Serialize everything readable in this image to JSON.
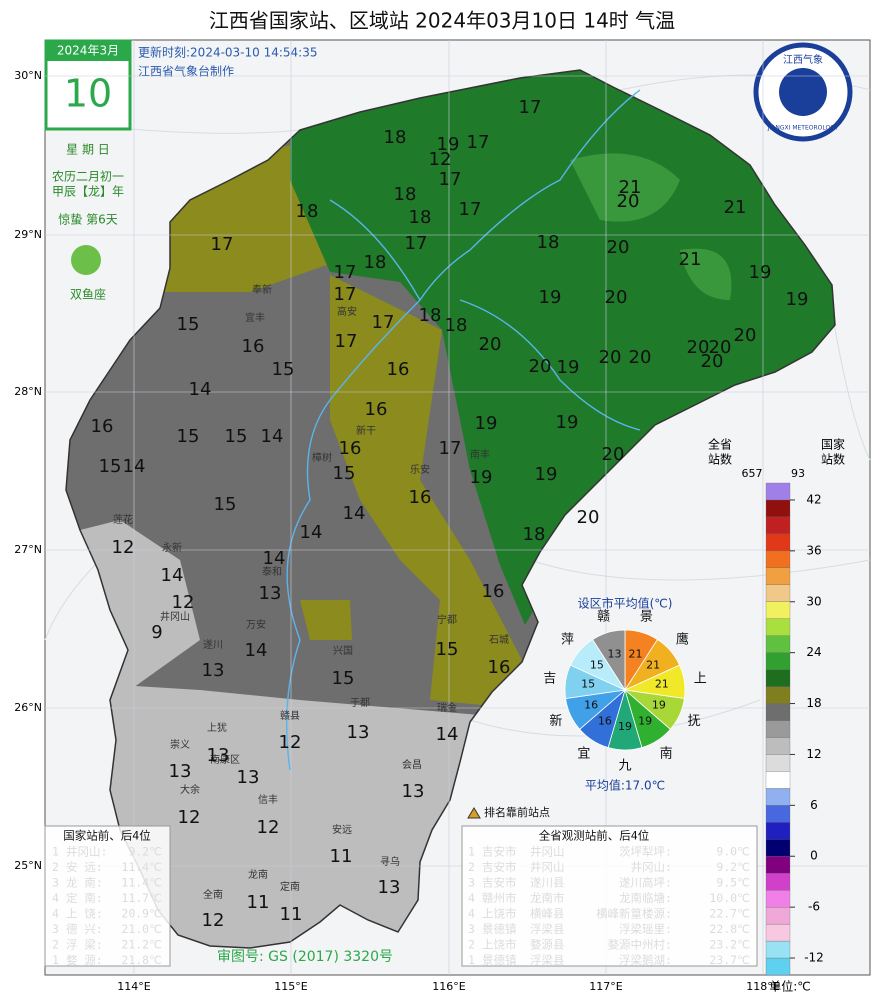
{
  "title": "江西省国家站、区域站  2024年03月10日 14时  气温",
  "calendar": {
    "month": "2024年3月",
    "day": "10",
    "weekday": "星 期 日",
    "lunar": "农历二月初一",
    "year": "甲辰【龙】年",
    "solar_term": "惊蛰 第6天",
    "zodiac": "双鱼座"
  },
  "update": {
    "time": "更新时刻:2024-03-10 14:54:35",
    "maker": "江西省气象台制作"
  },
  "logo": {
    "cn": "江西气象",
    "en": "JIANGXI METEOROLOGY"
  },
  "lat_labels": [
    "30°N",
    "29°N",
    "28°N",
    "27°N",
    "26°N",
    "25°N"
  ],
  "lon_labels": [
    "114°E",
    "115°E",
    "116°E",
    "117°E",
    "118°E"
  ],
  "stations": [
    17,
    18,
    19,
    12,
    17,
    17,
    18,
    18,
    18,
    17,
    21,
    20,
    21,
    17,
    17,
    18,
    20,
    21,
    19,
    18,
    17,
    17,
    19,
    20,
    19,
    17,
    18,
    18,
    15,
    16,
    17,
    20,
    20,
    20,
    20,
    20,
    20,
    15,
    16,
    20,
    19,
    20,
    14,
    16,
    19,
    19,
    16,
    15,
    15,
    14,
    16,
    17,
    20,
    15,
    14,
    15,
    19,
    19,
    16,
    15,
    14,
    20,
    14,
    18,
    12,
    14,
    14,
    13,
    16,
    12,
    9,
    14,
    15,
    16,
    13,
    15,
    12,
    13,
    14,
    13,
    13,
    13,
    13,
    12,
    12,
    11,
    13,
    11,
    11,
    12
  ],
  "places": [
    "井冈山",
    "上犹",
    "崇义",
    "南康区",
    "大余",
    "信丰",
    "安远",
    "龙南",
    "定南",
    "全南",
    "寻乌",
    "会昌",
    "于都",
    "赣县",
    "瑞金",
    "宁都",
    "石城",
    "兴国",
    "万安",
    "遂川",
    "永新",
    "莲花",
    "泰和",
    "新干",
    "乐安",
    "高安",
    "奉新",
    "宜丰",
    "樟树",
    "南丰"
  ],
  "pie": {
    "title": "设区市平均值(℃)",
    "average": "平均值:17.0℃",
    "slices": [
      {
        "label": "景",
        "value": 21,
        "color": "#f58220"
      },
      {
        "label": "鹰",
        "value": 21,
        "color": "#f0b020"
      },
      {
        "label": "上",
        "value": 21,
        "color": "#f2e82a"
      },
      {
        "label": "抚",
        "value": 19,
        "color": "#a8d838"
      },
      {
        "label": "南",
        "value": 19,
        "color": "#30b030"
      },
      {
        "label": "九",
        "value": 19,
        "color": "#20a878"
      },
      {
        "label": "宜",
        "value": 16,
        "color": "#3070d8"
      },
      {
        "label": "新",
        "value": 16,
        "color": "#40a0e8"
      },
      {
        "label": "吉",
        "value": 15,
        "color": "#80d0f0"
      },
      {
        "label": "萍",
        "value": 15,
        "color": "#b8ecfa"
      },
      {
        "label": "赣",
        "value": 13,
        "color": "#909090"
      }
    ]
  },
  "colorbar": {
    "total_head": [
      "全省",
      "站数"
    ],
    "total": 657,
    "national_head": [
      "国家",
      "站数"
    ],
    "national": 93,
    "unit": "单位:℃",
    "lim": [
      -14,
      44
    ],
    "ticks": [
      42,
      36,
      30,
      24,
      18,
      12,
      6,
      0,
      -6,
      -12
    ],
    "colors": [
      "#60d0f0",
      "#98e2f4",
      "#f8c8e0",
      "#f0a8d8",
      "#f080e8",
      "#d040c8",
      "#800080",
      "#000070",
      "#2020c0",
      "#4868e0",
      "#90b0f0",
      "#ffffff",
      "#dcdcdc",
      "#bdbdbd",
      "#9a9a9a",
      "#6e6e6e",
      "#7f7f20",
      "#1f6e1f",
      "#30a030",
      "#60c040",
      "#a8e040",
      "#f0f060",
      "#f0c888",
      "#f0a040",
      "#f07020",
      "#e03818",
      "#c02020",
      "#901010",
      "#a080e8"
    ]
  },
  "national_table": {
    "title": "国家站前、后4位",
    "rows": [
      [
        "1",
        "井冈山:",
        "9.2℃"
      ],
      [
        "2",
        "安  远:",
        "11.4℃"
      ],
      [
        "3",
        "龙  南:",
        "11.4℃"
      ],
      [
        "4",
        "定  南:",
        "11.7℃"
      ],
      [
        "4",
        "上  饶:",
        "20.9℃"
      ],
      [
        "3",
        "德  兴:",
        "21.0℃"
      ],
      [
        "2",
        "浮  梁:",
        "21.2℃"
      ],
      [
        "1",
        "婺  源:",
        "21.8℃"
      ]
    ]
  },
  "all_table": {
    "title": "全省观测站前、后4位",
    "rows": [
      [
        "1",
        "吉安市",
        "井冈山",
        "茨坪犁坪:",
        "9.0℃"
      ],
      [
        "2",
        "吉安市",
        "井冈山",
        "井冈山:",
        "9.2℃"
      ],
      [
        "3",
        "吉安市",
        "遂川县",
        "遂川高坪:",
        "9.5℃"
      ],
      [
        "4",
        "赣州市",
        "龙南市",
        "龙南临塘:",
        "10.0℃"
      ],
      [
        "4",
        "上饶市",
        "横峰县",
        "横峰新篁楼源:",
        "22.7℃"
      ],
      [
        "3",
        "景德镇",
        "浮梁县",
        "浮梁瑶里:",
        "22.8℃"
      ],
      [
        "2",
        "上饶市",
        "婺源县",
        "婺源中州村:",
        "23.2℃"
      ],
      [
        "1",
        "景德镇",
        "浮梁县",
        "浮梁鹅湖:",
        "23.7℃"
      ]
    ]
  },
  "marker_note": "排名靠前站点",
  "approval": "审图号: GS (2017) 3320号"
}
